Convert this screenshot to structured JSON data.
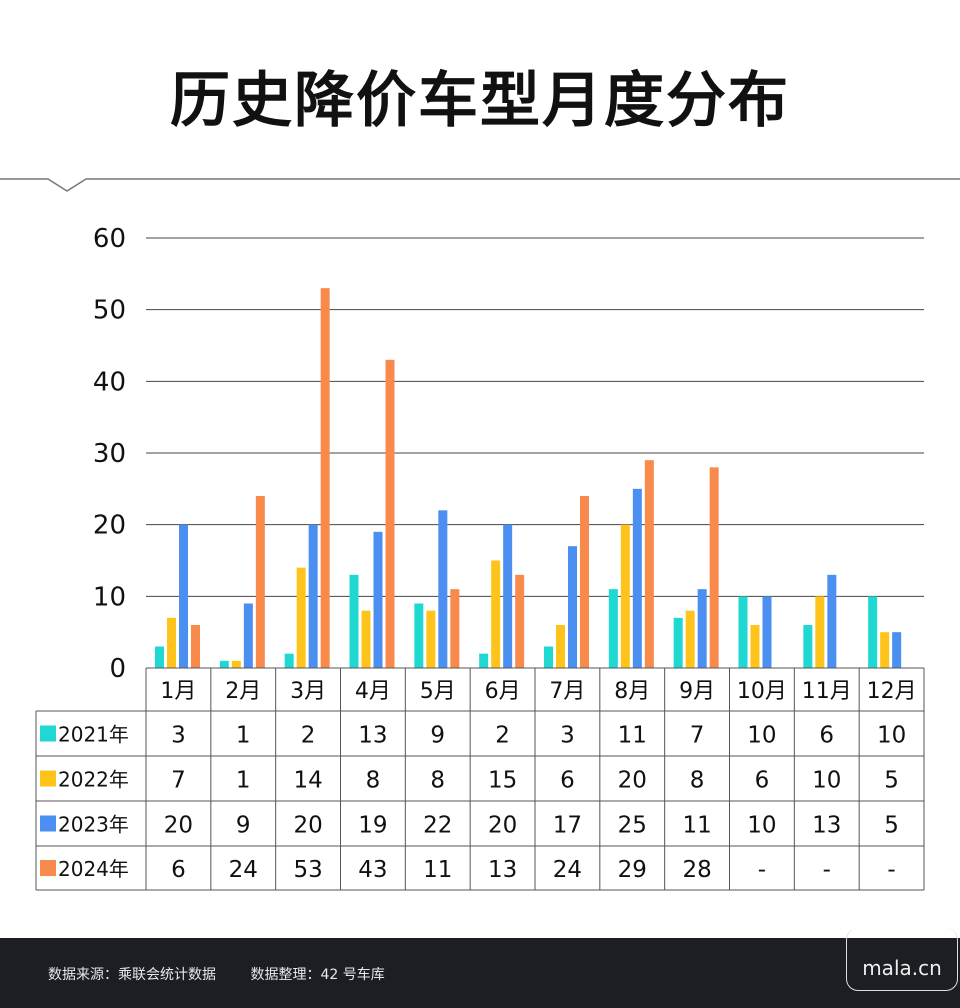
{
  "title": "历史降价车型月度分布",
  "colors": {
    "2021": "#1fd8d2",
    "2022": "#ffc41c",
    "2023": "#4b8ff0",
    "2024": "#f88a4c"
  },
  "chart_data": {
    "type": "bar",
    "title": "历史降价车型月度分布",
    "categories": [
      "1月",
      "2月",
      "3月",
      "4月",
      "5月",
      "6月",
      "7月",
      "8月",
      "9月",
      "10月",
      "11月",
      "12月"
    ],
    "ylim": [
      0,
      60
    ],
    "yticks": [
      "0",
      "10",
      "20",
      "30",
      "40",
      "50",
      "60"
    ],
    "grid": true,
    "series": [
      {
        "name": "2021年",
        "values": [
          3,
          1,
          2,
          13,
          9,
          2,
          3,
          11,
          7,
          10,
          6,
          10
        ],
        "labels": [
          "3",
          "1",
          "2",
          "13",
          "9",
          "2",
          "3",
          "11",
          "7",
          "10",
          "6",
          "10"
        ]
      },
      {
        "name": "2022年",
        "values": [
          7,
          1,
          14,
          8,
          8,
          15,
          6,
          20,
          8,
          6,
          10,
          5
        ],
        "labels": [
          "7",
          "1",
          "14",
          "8",
          "8",
          "15",
          "6",
          "20",
          "8",
          "6",
          "10",
          "5"
        ]
      },
      {
        "name": "2023年",
        "values": [
          20,
          9,
          20,
          19,
          22,
          20,
          17,
          25,
          11,
          10,
          13,
          5
        ],
        "labels": [
          "20",
          "9",
          "20",
          "19",
          "22",
          "20",
          "17",
          "25",
          "11",
          "10",
          "13",
          "5"
        ]
      },
      {
        "name": "2024年",
        "values": [
          6,
          24,
          53,
          43,
          11,
          13,
          24,
          29,
          28,
          null,
          null,
          null
        ],
        "labels": [
          "6",
          "24",
          "53",
          "43",
          "11",
          "13",
          "24",
          "29",
          "28",
          "-",
          "-",
          "-"
        ]
      }
    ]
  },
  "footer": {
    "source": "数据来源：乘联会统计数据",
    "compiled": "数据整理：42 号车库",
    "logo": "mala.cn"
  }
}
